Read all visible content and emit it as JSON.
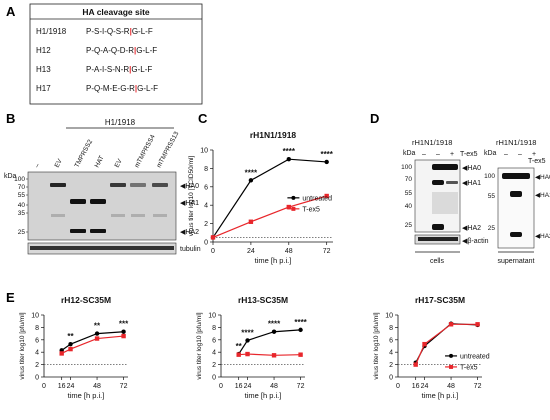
{
  "panels": {
    "A": "A",
    "B": "B",
    "C": "C",
    "D": "D",
    "E": "E"
  },
  "panel_a": {
    "header": "HA cleavage site",
    "rows": [
      {
        "name": "H1/1918",
        "pre": "P-S-I-Q-S-R",
        "post": "G-L-F"
      },
      {
        "name": "H12",
        "pre": "P-Q-A-Q-D-R",
        "post": "G-L-F"
      },
      {
        "name": "H13",
        "pre": "P-A-I-S-N-R",
        "post": "G-L-F"
      },
      {
        "name": "H17",
        "pre": "P-Q-M-E-G-R",
        "post": "G-L-F"
      }
    ],
    "cleave_mark": "|"
  },
  "panel_b": {
    "group_label": "H1/1918",
    "lanes": [
      "–",
      "EV",
      "TMPRSS2",
      "HAT",
      "EV",
      "mTMPRSS4",
      "mTMPRSS13"
    ],
    "kda_label": "kDa",
    "markers": [
      "100",
      "70",
      "55",
      "40",
      "35",
      "25"
    ],
    "loading_label": "tubulin",
    "band_labels": [
      "HA0",
      "HA1",
      "HA2"
    ]
  },
  "panel_d": {
    "kda_label": "kDa",
    "cells": {
      "virus": "rH1N1/1918",
      "lanes": [
        "–",
        "–",
        "+"
      ],
      "treat_label": "T-ex5",
      "markers": [
        "100",
        "70",
        "55",
        "40",
        "25"
      ],
      "band_labels": [
        "HA0",
        "HA1",
        "HA2"
      ],
      "loading_label": "β-actin",
      "footer": "cells"
    },
    "supernatant": {
      "virus": "rH1N1/1918",
      "lanes": [
        "–",
        "–",
        "+"
      ],
      "treat_label": "T-ex5",
      "markers": [
        "100",
        "55",
        "25"
      ],
      "band_labels": [
        "HA0",
        "HA1",
        "HA2"
      ],
      "footer": "supernatant"
    }
  },
  "chart_data": [
    {
      "panel": "C",
      "type": "line",
      "title": "rH1N1/1918",
      "xlabel": "time [h p.i.]",
      "ylabel": "virus titer log10 [TCID50/ml]",
      "xticks": [
        0,
        24,
        48,
        72
      ],
      "yticks": [
        0,
        2,
        4,
        6,
        8,
        10
      ],
      "xlim": [
        0,
        76
      ],
      "ylim": [
        0,
        10
      ],
      "baseline": 0.5,
      "series": [
        {
          "name": "untreated",
          "color": "#000000",
          "x": [
            0,
            24,
            48,
            72
          ],
          "y": [
            0.5,
            6.7,
            9.0,
            8.7
          ]
        },
        {
          "name": "T-ex5",
          "color": "#e8262b",
          "x": [
            0,
            24,
            48,
            72
          ],
          "y": [
            0.5,
            2.2,
            3.8,
            5.0
          ]
        }
      ],
      "sig": [
        {
          "x": 24,
          "text": "****"
        },
        {
          "x": 48,
          "text": "****"
        },
        {
          "x": 72,
          "text": "****"
        }
      ],
      "legend": "right"
    },
    {
      "panel": "E",
      "type": "line",
      "title": "rH12-SC35M",
      "xlabel": "time [h p.i.]",
      "ylabel": "virus titer log10 [pfu/ml]",
      "xticks": [
        16,
        24,
        48,
        72
      ],
      "xtick_labels": [
        "16",
        "24",
        "48",
        "72"
      ],
      "yticks": [
        0,
        2,
        4,
        6,
        8,
        10
      ],
      "xlim": [
        0,
        76
      ],
      "ylim": [
        0,
        10
      ],
      "baseline": 2,
      "series": [
        {
          "name": "untreated",
          "color": "#000000",
          "x": [
            16,
            24,
            48,
            72
          ],
          "y": [
            4.3,
            5.3,
            7.0,
            7.3
          ]
        },
        {
          "name": "T-ex5",
          "color": "#e8262b",
          "x": [
            16,
            24,
            48,
            72
          ],
          "y": [
            3.8,
            4.5,
            6.2,
            6.6
          ]
        }
      ],
      "sig": [
        {
          "x": 24,
          "text": "**"
        },
        {
          "x": 48,
          "text": "**"
        },
        {
          "x": 72,
          "text": "***"
        }
      ]
    },
    {
      "panel": "E",
      "type": "line",
      "title": "rH13-SC35M",
      "xlabel": "time [h p.i.]",
      "ylabel": "virus titer log10 [pfu/ml]",
      "xticks": [
        16,
        24,
        48,
        72
      ],
      "xtick_labels": [
        "16",
        "24",
        "48",
        "72"
      ],
      "yticks": [
        0,
        2,
        4,
        6,
        8,
        10
      ],
      "xlim": [
        0,
        76
      ],
      "ylim": [
        0,
        10
      ],
      "baseline": 2,
      "series": [
        {
          "name": "untreated",
          "color": "#000000",
          "x": [
            16,
            24,
            48,
            72
          ],
          "y": [
            3.7,
            5.9,
            7.3,
            7.6
          ]
        },
        {
          "name": "T-ex5",
          "color": "#e8262b",
          "x": [
            16,
            24,
            48,
            72
          ],
          "y": [
            3.6,
            3.7,
            3.5,
            3.6
          ]
        }
      ],
      "sig": [
        {
          "x": 16,
          "text": "**"
        },
        {
          "x": 24,
          "text": "****"
        },
        {
          "x": 48,
          "text": "****"
        },
        {
          "x": 72,
          "text": "****"
        }
      ]
    },
    {
      "panel": "E",
      "type": "line",
      "title": "rH17-SC35M",
      "xlabel": "time [h p.i.]",
      "ylabel": "virus titer log10 [pfu/ml]",
      "xticks": [
        16,
        24,
        48,
        72
      ],
      "xtick_labels": [
        "16",
        "24",
        "48",
        "72"
      ],
      "yticks": [
        0,
        2,
        4,
        6,
        8,
        10
      ],
      "xlim": [
        0,
        76
      ],
      "ylim": [
        0,
        10
      ],
      "baseline": 2,
      "series": [
        {
          "name": "untreated",
          "color": "#000000",
          "x": [
            16,
            24,
            48,
            72
          ],
          "y": [
            2.3,
            5.0,
            8.6,
            8.4
          ]
        },
        {
          "name": "T-ex5",
          "color": "#e8262b",
          "x": [
            16,
            24,
            48,
            72
          ],
          "y": [
            2.0,
            5.3,
            8.5,
            8.5
          ]
        }
      ],
      "sig": [],
      "legend": "bottom-right"
    }
  ]
}
